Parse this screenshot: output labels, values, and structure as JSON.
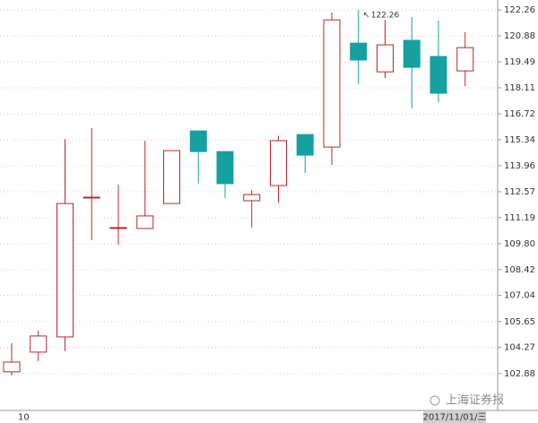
{
  "chart_data": {
    "type": "candlestick",
    "categories": [
      "10",
      null,
      null,
      null,
      null,
      null,
      null,
      null,
      null,
      null,
      null,
      null,
      null,
      null,
      null,
      null,
      null,
      null
    ],
    "series": [
      {
        "up_color": "#b8282a",
        "down_color": "#16a0a0",
        "open": [
          102.97,
          104.02,
          104.83,
          112.28,
          110.66,
          110.61,
          111.94,
          115.81,
          114.71,
          112.09,
          112.9,
          115.62,
          114.95,
          120.49,
          118.96,
          120.64,
          119.78,
          119.01
        ],
        "high": [
          104.5,
          105.16,
          115.38,
          115.96,
          112.95,
          115.29,
          114.76,
          115.81,
          114.71,
          112.66,
          115.53,
          115.62,
          122.12,
          122.26,
          121.73,
          121.88,
          121.69,
          121.07
        ],
        "low": [
          102.78,
          103.54,
          104.07,
          109.99,
          109.75,
          110.61,
          111.94,
          113.0,
          112.23,
          110.66,
          111.99,
          113.57,
          114.0,
          118.3,
          118.63,
          117.01,
          117.34,
          118.2
        ],
        "close": [
          103.49,
          104.88,
          111.94,
          112.28,
          110.66,
          111.28,
          114.76,
          114.71,
          113.0,
          112.42,
          115.29,
          114.52,
          121.73,
          119.59,
          120.4,
          119.2,
          117.82,
          120.25
        ]
      }
    ],
    "ylim": [
      100.91,
      122.79
    ],
    "yticks": [
      122.26,
      120.88,
      119.49,
      118.11,
      116.72,
      115.34,
      113.96,
      112.57,
      111.19,
      {
        "value": 109.8,
        "label": "109.80"
      },
      108.42,
      107.04,
      105.65,
      104.27,
      102.88
    ],
    "grid": true,
    "annotation": {
      "value": 122.26,
      "label": "122.26"
    },
    "cursor_label": "2017/11/01/三",
    "watermark": "上海证券报"
  }
}
